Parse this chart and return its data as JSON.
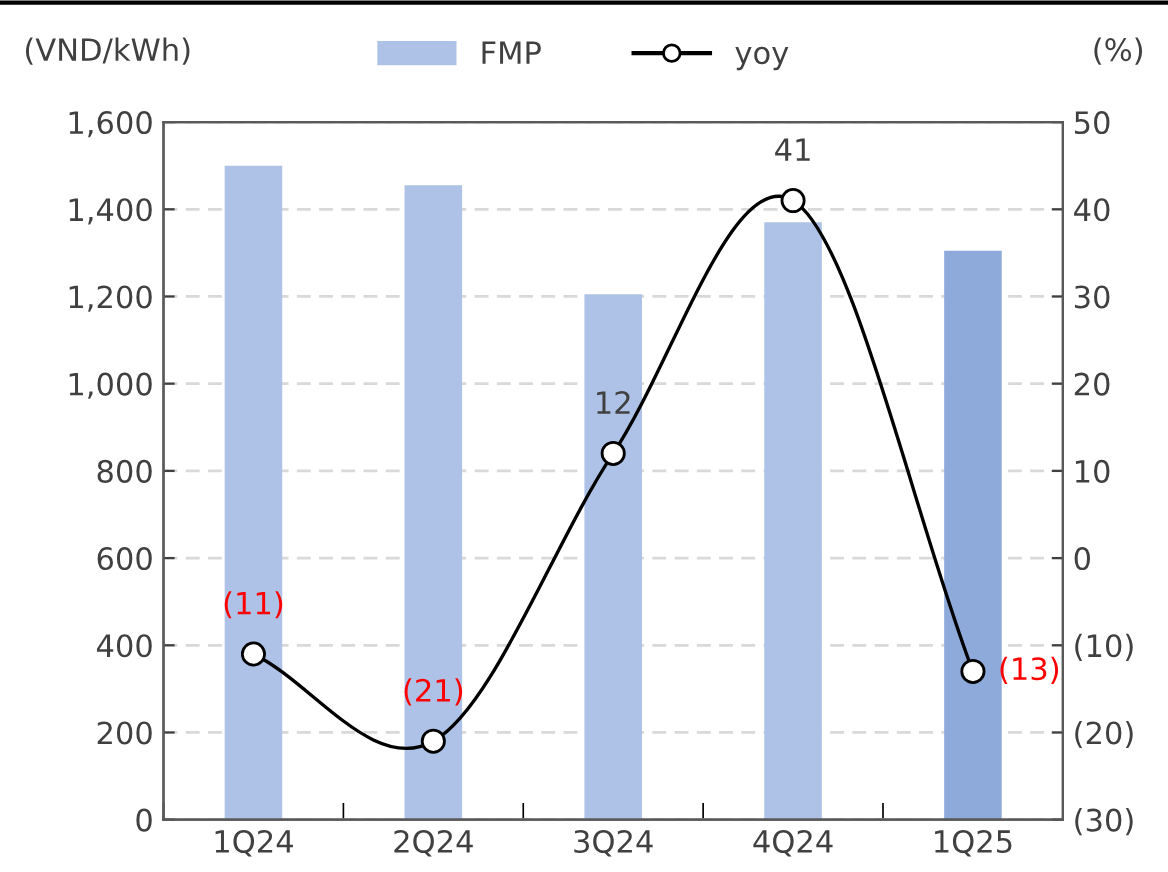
{
  "chart_data": {
    "type": "bar",
    "categories": [
      "1Q24",
      "2Q24",
      "3Q24",
      "4Q24",
      "1Q25"
    ],
    "ylabel": "(VND/kWh)",
    "y2label": "(%)",
    "series": [
      {
        "name": "FMP",
        "color": "#adc2e6",
        "colors": [
          "#adc2e6",
          "#adc2e6",
          "#adc2e6",
          "#adc2e6",
          "#8eaadb"
        ],
        "values": [
          1500,
          1455,
          1205,
          1370,
          1305
        ]
      },
      {
        "name": "yoy",
        "type": "line",
        "axis": "y2",
        "color": "#000000",
        "marker": "circle",
        "values": [
          -11,
          -21,
          12,
          41,
          -13
        ],
        "value_labels": [
          "(11)",
          "(21)",
          "12",
          "41",
          "(13)"
        ]
      }
    ],
    "ylim": [
      0,
      1600
    ],
    "yticks": [
      0,
      {
        "value": 200,
        "label": "200"
      },
      {
        "value": 400,
        "label": "400"
      },
      {
        "value": 600,
        "label": "600"
      },
      {
        "value": 800,
        "label": "800"
      },
      {
        "value": 1000,
        "label": "1,000"
      },
      {
        "value": 1200,
        "label": "1,200"
      },
      {
        "value": 1400,
        "label": "1,400"
      },
      {
        "value": 1600,
        "label": "1,600"
      }
    ],
    "y2lim": [
      -30,
      50
    ],
    "y2ticks": [
      {
        "value": -30,
        "label": "(30)"
      },
      {
        "value": -20,
        "label": "(20)"
      },
      {
        "value": -10,
        "label": "(10)"
      },
      0,
      10,
      20,
      30,
      40,
      50
    ],
    "grid": "y",
    "legend": "top"
  }
}
